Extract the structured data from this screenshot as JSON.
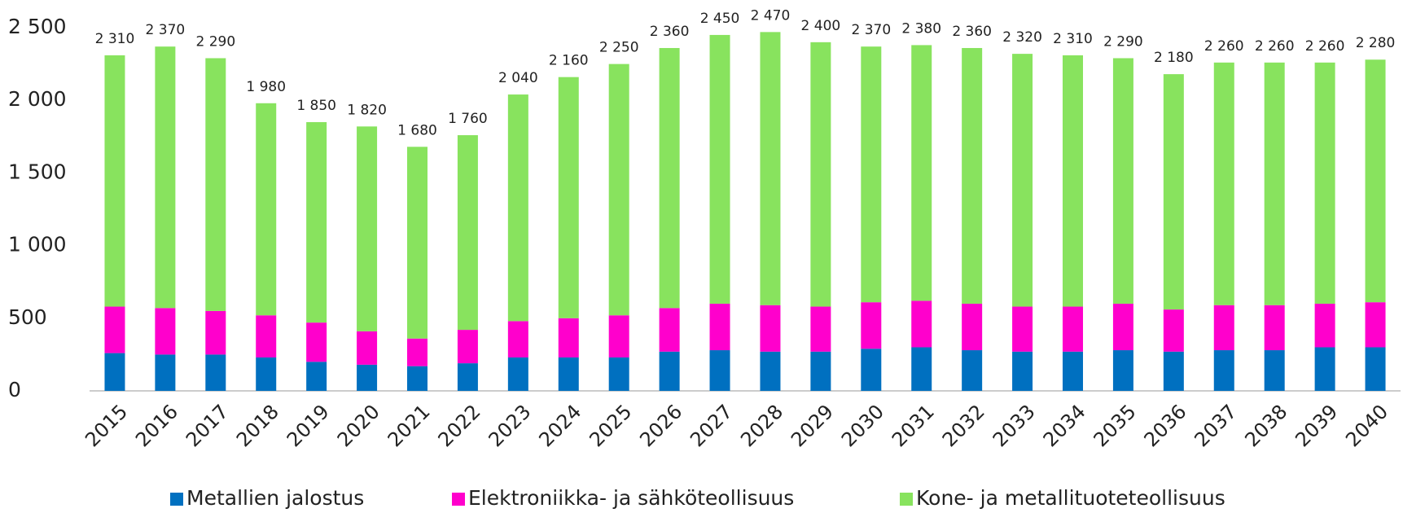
{
  "chart_data": {
    "type": "stacked_bar",
    "categories": [
      "2015",
      "2016",
      "2017",
      "2018",
      "2019",
      "2020",
      "2021",
      "2022",
      "2023",
      "2024",
      "2025",
      "2026",
      "2027",
      "2028",
      "2029",
      "2030",
      "2031",
      "2032",
      "2033",
      "2034",
      "2035",
      "2036",
      "2037",
      "2038",
      "2039",
      "2040"
    ],
    "series": [
      {
        "name": "Metallien jalostus",
        "color": "#0070c0",
        "values": [
          260,
          250,
          250,
          230,
          200,
          180,
          170,
          190,
          230,
          230,
          230,
          270,
          280,
          270,
          270,
          290,
          300,
          280,
          270,
          270,
          280,
          270,
          280,
          280,
          300,
          300
        ]
      },
      {
        "name": "Elektroniikka- ja sähköteollisuus",
        "color": "#ff00cc",
        "values": [
          320,
          320,
          300,
          290,
          270,
          230,
          190,
          230,
          250,
          270,
          290,
          300,
          320,
          320,
          310,
          320,
          320,
          320,
          310,
          310,
          320,
          290,
          310,
          310,
          300,
          310
        ]
      },
      {
        "name": "Kone- ja metallituoteteollisuus",
        "color": "#88e35e",
        "values": [
          1730,
          1800,
          1740,
          1460,
          1380,
          1410,
          1320,
          1340,
          1560,
          1660,
          1730,
          1790,
          1850,
          1880,
          1820,
          1760,
          1760,
          1760,
          1740,
          1730,
          1690,
          1620,
          1670,
          1670,
          1660,
          1670
        ]
      }
    ],
    "totals": [
      2310,
      2370,
      2290,
      1980,
      1850,
      1820,
      1680,
      1760,
      2040,
      2160,
      2250,
      2360,
      2450,
      2470,
      2400,
      2370,
      2380,
      2360,
      2320,
      2310,
      2290,
      2180,
      2260,
      2260,
      2260,
      2280
    ],
    "total_labels": [
      "2 310",
      "2 370",
      "2 290",
      "1 980",
      "1 850",
      "1 820",
      "1 680",
      "1 760",
      "2 040",
      "2 160",
      "2 250",
      "2 360",
      "2 450",
      "2 470",
      "2 400",
      "2 370",
      "2 380",
      "2 360",
      "2 320",
      "2 310",
      "2 290",
      "2 180",
      "2 260",
      "2 260",
      "2 260",
      "2 280"
    ],
    "ylim": [
      0,
      2500
    ],
    "yticks": [
      0,
      500,
      {
        "value": 1000,
        "label": "1 000"
      },
      {
        "value": 1500,
        "label": "1 500"
      },
      {
        "value": 2000,
        "label": "2 000"
      },
      {
        "value": 2500,
        "label": "2 500"
      }
    ],
    "grid": false,
    "legend": "bottom"
  }
}
